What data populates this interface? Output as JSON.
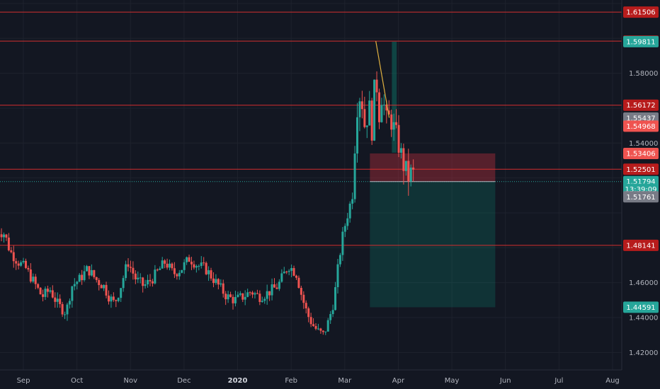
{
  "chart_data": {
    "type": "candlestick",
    "y_axis": {
      "range": [
        1.41,
        1.622
      ],
      "ticks": [
        "1.42000",
        "1.44000",
        "1.46000",
        "1.54000",
        "1.58000"
      ]
    },
    "x_axis": {
      "ticks": [
        {
          "label": "Sep",
          "pos": 0.5
        },
        {
          "label": "Oct",
          "pos": 1.5
        },
        {
          "label": "Nov",
          "pos": 2.5
        },
        {
          "label": "Dec",
          "pos": 3.5
        },
        {
          "label": "2020",
          "pos": 4.5,
          "bold": true
        },
        {
          "label": "Feb",
          "pos": 5.5
        },
        {
          "label": "Mar",
          "pos": 6.5
        },
        {
          "label": "Apr",
          "pos": 7.5
        },
        {
          "label": "May",
          "pos": 8.5
        },
        {
          "label": "Jun",
          "pos": 9.5
        },
        {
          "label": "Jul",
          "pos": 10.5
        },
        {
          "label": "Aug",
          "pos": 11.5
        }
      ]
    },
    "horizontal_levels": [
      1.61506,
      1.59843,
      1.56172,
      1.52501,
      1.48141
    ],
    "price_tags": [
      {
        "label": "1.61506",
        "value": 1.61506,
        "color": "#b71c1c"
      },
      {
        "label": "1.59843",
        "value": 1.59843,
        "color": "#b71c1c"
      },
      {
        "label": "1.59811",
        "value": 1.59811,
        "color": "#26a69a"
      },
      {
        "label": "1.56172",
        "value": 1.56172,
        "color": "#b71c1c"
      },
      {
        "label": "1.55437",
        "value": 1.55437,
        "color": "#787b86"
      },
      {
        "label": "1.54968",
        "value": 1.54968,
        "color": "#ef5350"
      },
      {
        "label": "1.53406",
        "value": 1.53406,
        "color": "#ef5350"
      },
      {
        "label": "1.52501",
        "value": 1.52501,
        "color": "#b71c1c"
      },
      {
        "label": "1.51794",
        "value": 1.51794,
        "color": "#26a69a"
      },
      {
        "label": "13:39:09",
        "value": 1.5135,
        "color": "#26a69a"
      },
      {
        "label": "1.51761",
        "value": 1.5092,
        "color": "#787b86"
      },
      {
        "label": "1.48141",
        "value": 1.48141,
        "color": "#b71c1c"
      },
      {
        "label": "1.44591",
        "value": 1.44591,
        "color": "#26a69a"
      }
    ],
    "current_price": 1.51794,
    "position": {
      "entry": 1.51794,
      "stop": 1.53406,
      "target": 1.44591,
      "start": 6.97,
      "end": 9.31
    },
    "trend_line": {
      "from": [
        7.08,
        1.59843
      ],
      "to": [
        7.33,
        1.5545
      ]
    },
    "highlight_band": {
      "start": 7.38,
      "end": 7.47,
      "top": 1.5981,
      "bottom": 1.5345
    },
    "series_points": [
      [
        0.0,
        1.49
      ],
      [
        0.15,
        1.488
      ],
      [
        0.25,
        1.478
      ],
      [
        0.4,
        1.472
      ],
      [
        0.55,
        1.468
      ],
      [
        0.7,
        1.46
      ],
      [
        0.85,
        1.452
      ],
      [
        1.0,
        1.456
      ],
      [
        1.15,
        1.447
      ],
      [
        1.3,
        1.443
      ],
      [
        1.4,
        1.458
      ],
      [
        1.55,
        1.462
      ],
      [
        1.7,
        1.468
      ],
      [
        1.85,
        1.462
      ],
      [
        2.0,
        1.458
      ],
      [
        2.1,
        1.452
      ],
      [
        2.2,
        1.448
      ],
      [
        2.3,
        1.456
      ],
      [
        2.45,
        1.472
      ],
      [
        2.6,
        1.462
      ],
      [
        2.75,
        1.458
      ],
      [
        2.9,
        1.462
      ],
      [
        3.05,
        1.468
      ],
      [
        3.15,
        1.472
      ],
      [
        3.3,
        1.465
      ],
      [
        3.45,
        1.468
      ],
      [
        3.6,
        1.474
      ],
      [
        3.75,
        1.47
      ],
      [
        3.9,
        1.468
      ],
      [
        4.0,
        1.464
      ],
      [
        4.15,
        1.458
      ],
      [
        4.3,
        1.452
      ],
      [
        4.45,
        1.45
      ],
      [
        4.6,
        1.452
      ],
      [
        4.75,
        1.455
      ],
      [
        4.9,
        1.452
      ],
      [
        5.05,
        1.454
      ],
      [
        5.25,
        1.458
      ],
      [
        5.45,
        1.47
      ],
      [
        5.6,
        1.465
      ],
      [
        5.7,
        1.452
      ],
      [
        5.8,
        1.442
      ],
      [
        5.9,
        1.436
      ],
      [
        6.0,
        1.432
      ],
      [
        6.1,
        1.43
      ],
      [
        6.2,
        1.438
      ],
      [
        6.3,
        1.45
      ],
      [
        6.38,
        1.47
      ],
      [
        6.45,
        1.485
      ],
      [
        6.52,
        1.495
      ],
      [
        6.6,
        1.505
      ],
      [
        6.65,
        1.515
      ],
      [
        6.72,
        1.56
      ],
      [
        6.8,
        1.57
      ],
      [
        6.88,
        1.548
      ],
      [
        6.95,
        1.562
      ],
      [
        7.02,
        1.545
      ],
      [
        7.08,
        1.59
      ],
      [
        7.12,
        1.552
      ],
      [
        7.2,
        1.57
      ],
      [
        7.27,
        1.552
      ],
      [
        7.35,
        1.555
      ],
      [
        7.42,
        1.548
      ],
      [
        7.5,
        1.54
      ],
      [
        7.56,
        1.532
      ],
      [
        7.62,
        1.525
      ],
      [
        7.7,
        1.52
      ],
      [
        7.76,
        1.524
      ],
      [
        7.82,
        1.518
      ]
    ]
  }
}
